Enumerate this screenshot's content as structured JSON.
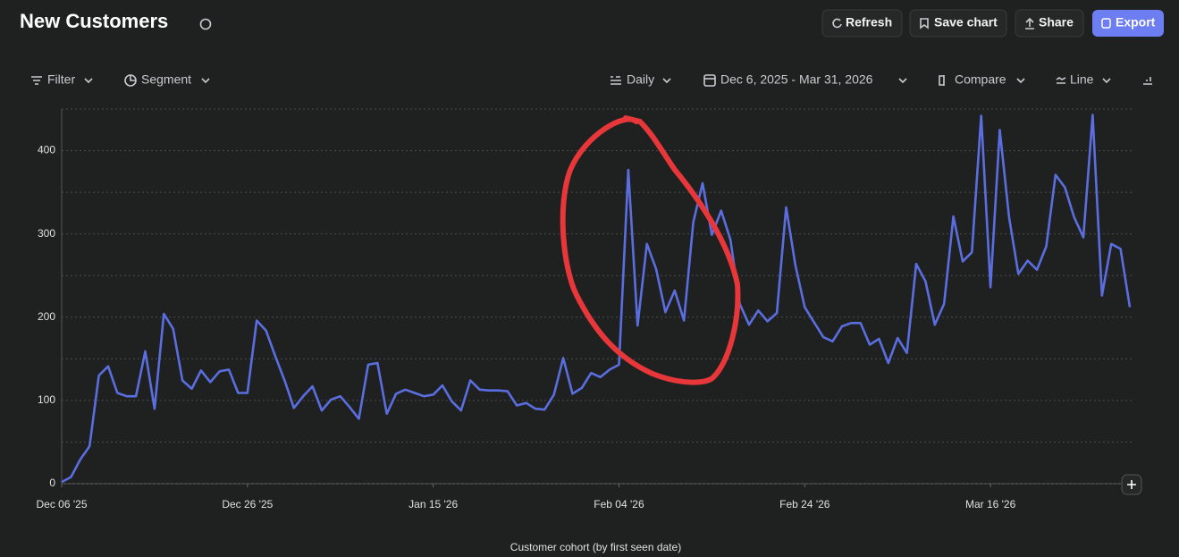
{
  "header": {
    "title": "New Customers",
    "buttons": [
      "Refresh",
      "Save chart",
      "Share",
      "Export"
    ]
  },
  "toolbar": {
    "filter": "Filter",
    "segment": "Segment",
    "interval": "Daily",
    "date_range": "Dec 6, 2025 - Mar 31, 2026",
    "compare": "Compare",
    "chart_type": "Line"
  },
  "chart_data": {
    "type": "line",
    "x_label": "Customer cohort (by first seen date)",
    "x": [
      "2025-12-06",
      "2025-12-07",
      "2025-12-08",
      "2025-12-09",
      "2025-12-10",
      "2025-12-11",
      "2025-12-12",
      "2025-12-13",
      "2025-12-14",
      "2025-12-15",
      "2025-12-16",
      "2025-12-17",
      "2025-12-18",
      "2025-12-19",
      "2025-12-20",
      "2025-12-21",
      "2025-12-22",
      "2025-12-23",
      "2025-12-24",
      "2025-12-25",
      "2025-12-26",
      "2025-12-27",
      "2025-12-28",
      "2025-12-29",
      "2025-12-30",
      "2025-12-31",
      "2026-01-01",
      "2026-01-02",
      "2026-01-03",
      "2026-01-04",
      "2026-01-05",
      "2026-01-06",
      "2026-01-07",
      "2026-01-08",
      "2026-01-09",
      "2026-01-10",
      "2026-01-11",
      "2026-01-12",
      "2026-01-13",
      "2026-01-14",
      "2026-01-15",
      "2026-01-16",
      "2026-01-17",
      "2026-01-18",
      "2026-01-19",
      "2026-01-20",
      "2026-01-21",
      "2026-01-22",
      "2026-01-23",
      "2026-01-24",
      "2026-01-25",
      "2026-01-26",
      "2026-01-27",
      "2026-01-28",
      "2026-01-29",
      "2026-01-30",
      "2026-01-31",
      "2026-02-01",
      "2026-02-02",
      "2026-02-03",
      "2026-02-04",
      "2026-02-05",
      "2026-02-06",
      "2026-02-07",
      "2026-02-08",
      "2026-02-09",
      "2026-02-10",
      "2026-02-11",
      "2026-02-12",
      "2026-02-13",
      "2026-02-14",
      "2026-02-15",
      "2026-02-16",
      "2026-02-17",
      "2026-02-18",
      "2026-02-19",
      "2026-02-20",
      "2026-02-21",
      "2026-02-22",
      "2026-02-23",
      "2026-02-24",
      "2026-02-25",
      "2026-02-26",
      "2026-02-27",
      "2026-02-28",
      "2026-03-01",
      "2026-03-02",
      "2026-03-03",
      "2026-03-04",
      "2026-03-05",
      "2026-03-06",
      "2026-03-07",
      "2026-03-08",
      "2026-03-09",
      "2026-03-10",
      "2026-03-11",
      "2026-03-12",
      "2026-03-13",
      "2026-03-14",
      "2026-03-15",
      "2026-03-16",
      "2026-03-17",
      "2026-03-18",
      "2026-03-19",
      "2026-03-20",
      "2026-03-21",
      "2026-03-22",
      "2026-03-23",
      "2026-03-24",
      "2026-03-25",
      "2026-03-26",
      "2026-03-27",
      "2026-03-28",
      "2026-03-29",
      "2026-03-30",
      "2026-03-31"
    ],
    "series": [
      {
        "name": "New Customers",
        "color": "#5b6ee0",
        "values": [
          2,
          8,
          29,
          45,
          130,
          141,
          109,
          105,
          105,
          159,
          90,
          204,
          186,
          124,
          114,
          136,
          122,
          135,
          137,
          109,
          109,
          196,
          184,
          153,
          124,
          91,
          105,
          117,
          88,
          101,
          105,
          92,
          78,
          143,
          145,
          84,
          108,
          113,
          109,
          105,
          107,
          118,
          99,
          88,
          124,
          113,
          112,
          112,
          111,
          94,
          97,
          90,
          89,
          107,
          151,
          108,
          115,
          133,
          128,
          137,
          143,
          377,
          190,
          288,
          258,
          206,
          232,
          196,
          314,
          361,
          299,
          328,
          293,
          216,
          191,
          208,
          195,
          205,
          332,
          262,
          212,
          194,
          176,
          171,
          189,
          193,
          193,
          167,
          174,
          145,
          175,
          157,
          264,
          243,
          191,
          216,
          321,
          267,
          278,
          442,
          236,
          425,
          320,
          252,
          268,
          257,
          285,
          371,
          356,
          320,
          296,
          443,
          226,
          288,
          282,
          212
        ]
      }
    ],
    "xlim": [
      "2025-12-06",
      "2026-03-31"
    ],
    "xticks": [
      {
        "value": "2025-12-06",
        "label": "Dec 06 '25"
      },
      {
        "value": "2025-12-26",
        "label": "Dec 26 '25"
      },
      {
        "value": "2026-01-15",
        "label": "Jan 15 '26"
      },
      {
        "value": "2026-02-04",
        "label": "Feb 04 '26"
      },
      {
        "value": "2026-02-24",
        "label": "Feb 24 '26"
      },
      {
        "value": "2026-03-16",
        "label": "Mar 16 '26"
      }
    ],
    "ylim": [
      0,
      450
    ],
    "yticks": [
      0,
      100,
      200,
      300,
      400
    ],
    "minor_gridlines": [
      50,
      150,
      250,
      350,
      450
    ],
    "grid": true
  }
}
